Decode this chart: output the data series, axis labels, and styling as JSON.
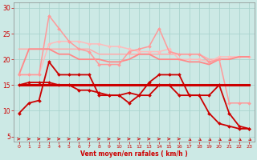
{
  "xlabel": "Vent moyen/en rafales ( km/h )",
  "xlim": [
    -0.5,
    23.5
  ],
  "ylim": [
    4,
    31
  ],
  "yticks": [
    5,
    10,
    15,
    20,
    25,
    30
  ],
  "xticks": [
    0,
    1,
    2,
    3,
    4,
    5,
    6,
    7,
    8,
    9,
    10,
    11,
    12,
    13,
    14,
    15,
    16,
    17,
    18,
    19,
    20,
    21,
    22,
    23
  ],
  "bg_color": "#cce9e5",
  "grid_color": "#aad4ce",
  "lines": [
    {
      "x": [
        0,
        1,
        2,
        3,
        4,
        5,
        6,
        7,
        8,
        9,
        10,
        11,
        12,
        13,
        14,
        15,
        16,
        17,
        18,
        19,
        20,
        21,
        22,
        23
      ],
      "y": [
        15,
        15,
        15,
        15,
        15,
        15,
        15,
        15,
        15,
        15,
        15,
        15,
        15,
        15,
        15,
        15,
        15,
        15,
        15,
        15,
        15,
        15,
        15,
        15
      ],
      "color": "#cc0000",
      "lw": 2.2,
      "marker": null,
      "ms": 0,
      "alpha": 1.0,
      "zorder": 5
    },
    {
      "x": [
        0,
        1,
        2,
        3,
        4,
        5,
        6,
        7,
        8,
        9,
        10,
        11,
        12,
        13,
        14,
        15,
        16,
        17,
        18,
        19,
        20,
        21,
        22,
        23
      ],
      "y": [
        9.5,
        11.5,
        12,
        19.5,
        17,
        17,
        17,
        17,
        13,
        13,
        13,
        11.5,
        13,
        15.5,
        17,
        17,
        17,
        13,
        13,
        9.5,
        7.5,
        7,
        6.5,
        6.5
      ],
      "color": "#cc0000",
      "lw": 1.3,
      "marker": "D",
      "ms": 2.0,
      "alpha": 1.0,
      "zorder": 4
    },
    {
      "x": [
        0,
        1,
        2,
        3,
        4,
        5,
        6,
        7,
        8,
        9,
        10,
        11,
        12,
        13,
        14,
        15,
        16,
        17,
        18,
        19,
        20,
        21,
        22,
        23
      ],
      "y": [
        15,
        15.5,
        15.5,
        15.5,
        15,
        15,
        14,
        14,
        13.5,
        13,
        13,
        13.5,
        13,
        13,
        15,
        15,
        13,
        13,
        13,
        13,
        15,
        9.5,
        7,
        6.5
      ],
      "color": "#cc0000",
      "lw": 1.3,
      "marker": "D",
      "ms": 2.0,
      "alpha": 1.0,
      "zorder": 4
    },
    {
      "x": [
        0,
        1,
        2,
        3,
        4,
        5,
        6,
        7,
        8,
        9,
        10,
        11,
        12,
        13,
        14,
        15,
        16,
        17,
        18,
        19,
        20,
        21,
        22,
        23
      ],
      "y": [
        17,
        22,
        22,
        22,
        21,
        21,
        20,
        20,
        20,
        19.5,
        19.5,
        20,
        21,
        21,
        20,
        20,
        20,
        19.5,
        19.5,
        19,
        20,
        20,
        20.5,
        20.5
      ],
      "color": "#ff8888",
      "lw": 1.3,
      "marker": null,
      "ms": 0,
      "alpha": 1.0,
      "zorder": 3
    },
    {
      "x": [
        0,
        1,
        2,
        3,
        4,
        5,
        6,
        7,
        8,
        9,
        10,
        11,
        12,
        13,
        14,
        15,
        16,
        17,
        18,
        19,
        20,
        21,
        22,
        23
      ],
      "y": [
        22,
        22,
        22,
        22,
        22,
        22,
        22,
        22,
        21,
        21,
        21,
        21,
        21,
        21,
        21,
        21,
        21,
        21,
        21,
        20,
        20,
        20,
        20.5,
        20.5
      ],
      "color": "#ffaaaa",
      "lw": 1.1,
      "marker": null,
      "ms": 0,
      "alpha": 1.0,
      "zorder": 2
    },
    {
      "x": [
        0,
        1,
        2,
        3,
        4,
        5,
        6,
        7,
        8,
        9,
        10,
        11,
        12,
        13,
        14,
        15,
        16,
        17,
        18,
        19,
        20,
        21,
        22,
        23
      ],
      "y": [
        17,
        17,
        17,
        28.5,
        26,
        23.5,
        22,
        21.5,
        19,
        19,
        19,
        21.5,
        22,
        22.5,
        26,
        21.5,
        21,
        21,
        21,
        19.5,
        20,
        11.5,
        11.5,
        11.5
      ],
      "color": "#ff9999",
      "lw": 1.1,
      "marker": "D",
      "ms": 2.0,
      "alpha": 1.0,
      "zorder": 3
    },
    {
      "x": [
        0,
        1,
        2,
        3,
        4,
        5,
        6,
        7,
        8,
        9,
        10,
        11,
        12,
        13,
        14,
        15,
        16,
        17,
        18,
        19,
        20,
        21,
        22,
        23
      ],
      "y": [
        17,
        17,
        17,
        23,
        23.5,
        23.5,
        23.5,
        23,
        23,
        22.5,
        22.5,
        22,
        21.5,
        21.5,
        21.5,
        22,
        20,
        20,
        20,
        19.5,
        20.5,
        20.5,
        20.5,
        20.5
      ],
      "color": "#ffbbbb",
      "lw": 1.1,
      "marker": "D",
      "ms": 2.0,
      "alpha": 1.0,
      "zorder": 2
    }
  ],
  "arrows": {
    "color": "#cc0000",
    "y_data": 4.5,
    "directions_right": [
      0,
      1,
      2,
      3,
      4,
      5,
      6,
      7,
      8,
      9,
      10,
      11,
      12,
      13,
      14,
      15,
      16
    ],
    "directions_downright": [
      17,
      18,
      19,
      20,
      21,
      22,
      23
    ]
  }
}
